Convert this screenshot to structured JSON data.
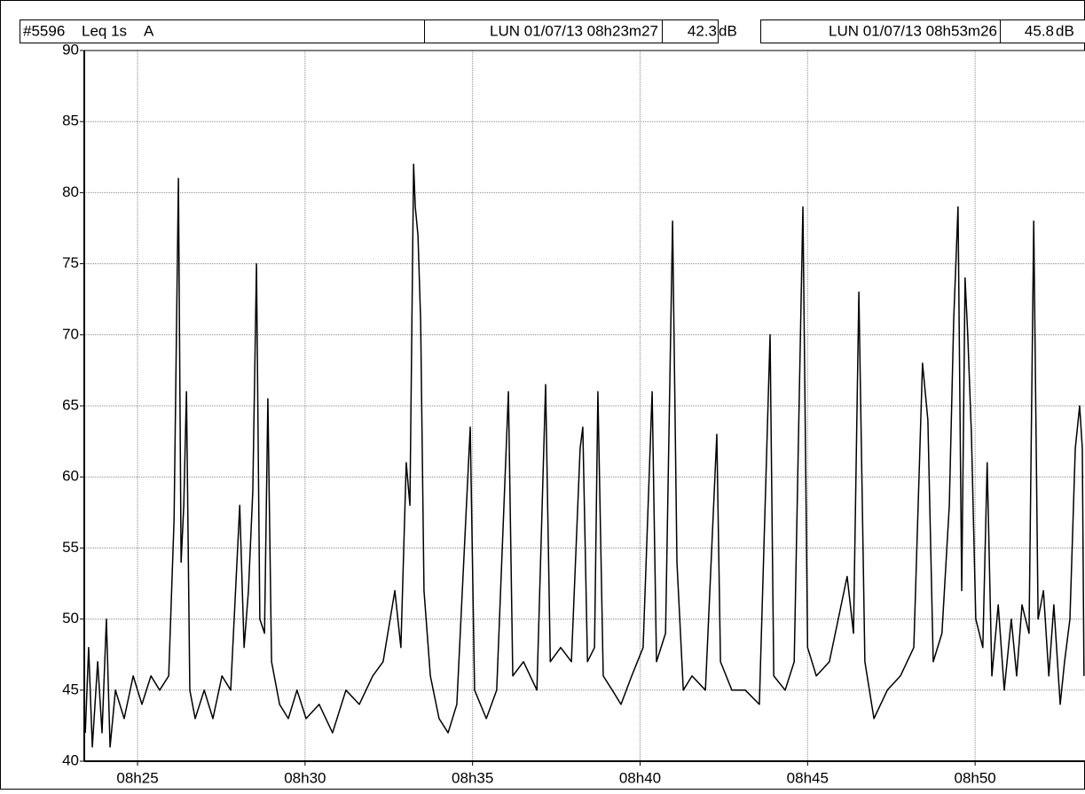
{
  "header": {
    "id": "#5596",
    "measure": "Leq 1s",
    "weighting": "A",
    "cursor1": {
      "time": "LUN 01/07/13 08h23m27",
      "value": "42.3",
      "unit": "dB"
    },
    "cursor2": {
      "time": "LUN 01/07/13 08h53m26",
      "value": "45.8",
      "unit": "dB"
    }
  },
  "chart_data": {
    "type": "line",
    "color": "#000000",
    "grid": true,
    "xlim": [
      23.41,
      53.28
    ],
    "xticks": [
      {
        "value": 25,
        "label": "08h25"
      },
      {
        "value": 30,
        "label": "08h30"
      },
      {
        "value": 35,
        "label": "08h35"
      },
      {
        "value": 40,
        "label": "08h40"
      },
      {
        "value": 45,
        "label": "08h45"
      },
      {
        "value": 50,
        "label": "08h50"
      }
    ],
    "ylim": [
      40,
      90
    ],
    "yticks": [
      40,
      45,
      50,
      55,
      60,
      65,
      70,
      75,
      80,
      85,
      90
    ],
    "x": [
      23.44,
      23.54,
      23.65,
      23.81,
      23.94,
      24.07,
      24.18,
      24.34,
      24.6,
      24.87,
      25.13,
      25.4,
      25.66,
      25.93,
      26.09,
      26.22,
      26.3,
      26.38,
      26.46,
      26.56,
      26.72,
      26.99,
      27.25,
      27.52,
      27.78,
      28.05,
      28.18,
      28.31,
      28.44,
      28.55,
      28.65,
      28.79,
      28.89,
      29.0,
      29.24,
      29.5,
      29.76,
      30.03,
      30.42,
      30.82,
      31.22,
      31.62,
      32.02,
      32.33,
      32.68,
      32.86,
      33.02,
      33.13,
      33.24,
      33.29,
      33.37,
      33.45,
      33.55,
      33.74,
      34.0,
      34.27,
      34.53,
      34.93,
      35.06,
      35.41,
      35.72,
      36.07,
      36.2,
      36.52,
      36.92,
      37.18,
      37.32,
      37.63,
      37.95,
      38.21,
      38.29,
      38.43,
      38.64,
      38.74,
      38.9,
      39.17,
      39.43,
      39.75,
      40.09,
      40.36,
      40.49,
      40.76,
      40.97,
      41.1,
      41.29,
      41.55,
      41.95,
      42.29,
      42.4,
      42.74,
      43.14,
      43.56,
      43.88,
      43.99,
      44.33,
      44.6,
      44.86,
      45.0,
      45.26,
      45.65,
      46.18,
      46.37,
      46.53,
      46.71,
      46.98,
      47.38,
      47.77,
      48.17,
      48.43,
      48.59,
      48.75,
      49.01,
      49.23,
      49.36,
      49.49,
      49.6,
      49.7,
      49.78,
      49.89,
      50.02,
      50.23,
      50.36,
      50.5,
      50.69,
      50.87,
      51.08,
      51.24,
      51.4,
      51.61,
      51.75,
      51.88,
      52.04,
      52.2,
      52.35,
      52.54,
      52.67,
      52.83,
      52.99,
      53.12,
      53.2,
      53.25
    ],
    "values": [
      42,
      48,
      41,
      47,
      42,
      50,
      41,
      45,
      43,
      46,
      44,
      46,
      45,
      46,
      57,
      81,
      54,
      58,
      66,
      45,
      43,
      45,
      43,
      46,
      45,
      58,
      48,
      52,
      59,
      75,
      50,
      49,
      65.5,
      47,
      44,
      43,
      45,
      43,
      44,
      42,
      45,
      44,
      46,
      47,
      52,
      48,
      61,
      58,
      82,
      79,
      77,
      71,
      52,
      46,
      43,
      42,
      44,
      63.5,
      45,
      43,
      45,
      66,
      46,
      47,
      45,
      66.5,
      47,
      48,
      47,
      62,
      63.5,
      47,
      48,
      66,
      46,
      45,
      44,
      46,
      48,
      66,
      47,
      49,
      78,
      54,
      45,
      46,
      45,
      63,
      47,
      45,
      45,
      44,
      70,
      46,
      45,
      47,
      79,
      48,
      46,
      47,
      53,
      49,
      73,
      47,
      43,
      45,
      46,
      48,
      68,
      64,
      47,
      49,
      58,
      71,
      79,
      52,
      74,
      70,
      63,
      50,
      48,
      61,
      46,
      51,
      45,
      50,
      46,
      51,
      49,
      78,
      50,
      52,
      46,
      51,
      44,
      47,
      50,
      62,
      65,
      62,
      46
    ]
  }
}
